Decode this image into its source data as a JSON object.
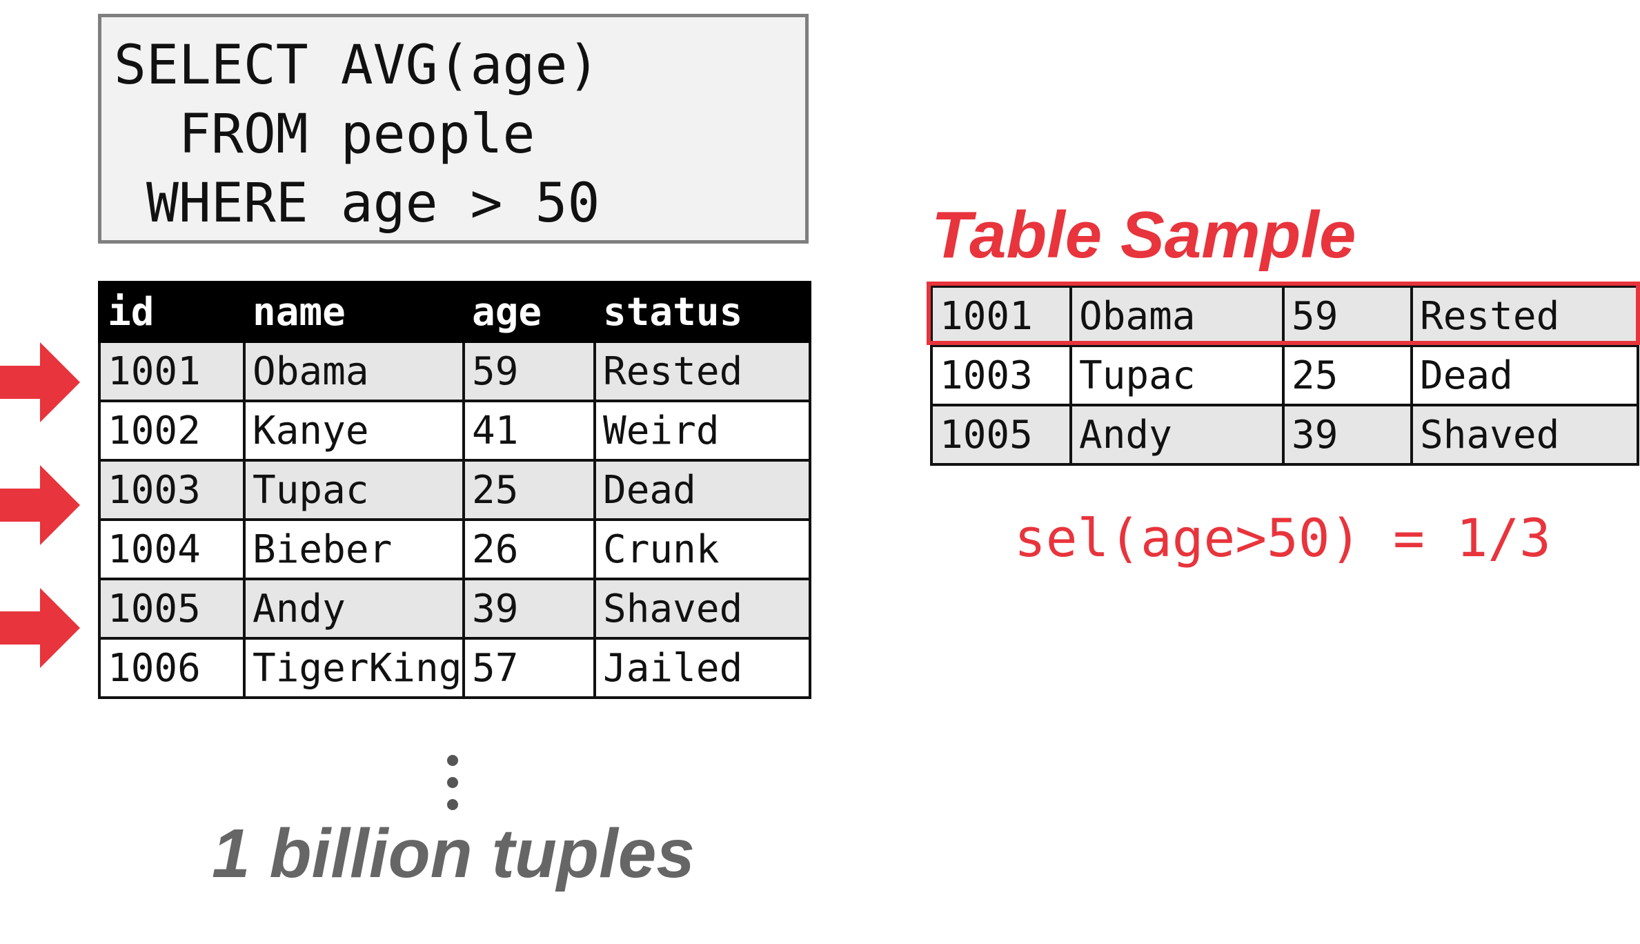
{
  "query": {
    "lines": [
      "SELECT AVG(age)",
      "  FROM people",
      " WHERE age > 50"
    ]
  },
  "people_table": {
    "columns": [
      "id",
      "name",
      "age",
      "status"
    ],
    "rows": [
      [
        "1001",
        "Obama",
        "59",
        "Rested"
      ],
      [
        "1002",
        "Kanye",
        "41",
        "Weird"
      ],
      [
        "1003",
        "Tupac",
        "25",
        "Dead"
      ],
      [
        "1004",
        "Bieber",
        "26",
        "Crunk"
      ],
      [
        "1005",
        "Andy",
        "39",
        "Shaved"
      ],
      [
        "1006",
        "TigerKing",
        "57",
        "Jailed"
      ]
    ],
    "sampled_row_indices": [
      0,
      2,
      4
    ]
  },
  "tuples_label": "1 billion tuples",
  "sample": {
    "title": "Table Sample",
    "rows": [
      [
        "1001",
        "Obama",
        "59",
        "Rested"
      ],
      [
        "1003",
        "Tupac",
        "25",
        "Dead"
      ],
      [
        "1005",
        "Andy",
        "39",
        "Shaved"
      ]
    ],
    "highlighted_row_index": 0,
    "selectivity_label": "sel(age>50) = 1/3"
  },
  "colors": {
    "accent": "#e8343c",
    "header_bg": "#000000",
    "shaded_row": "#e6e6e6",
    "query_bg": "#f2f2f2",
    "query_border": "#7f7f7f",
    "muted_text": "#666666"
  },
  "icons": {
    "arrow": "right-arrow-icon",
    "ellipsis": "vertical-ellipsis-icon"
  }
}
